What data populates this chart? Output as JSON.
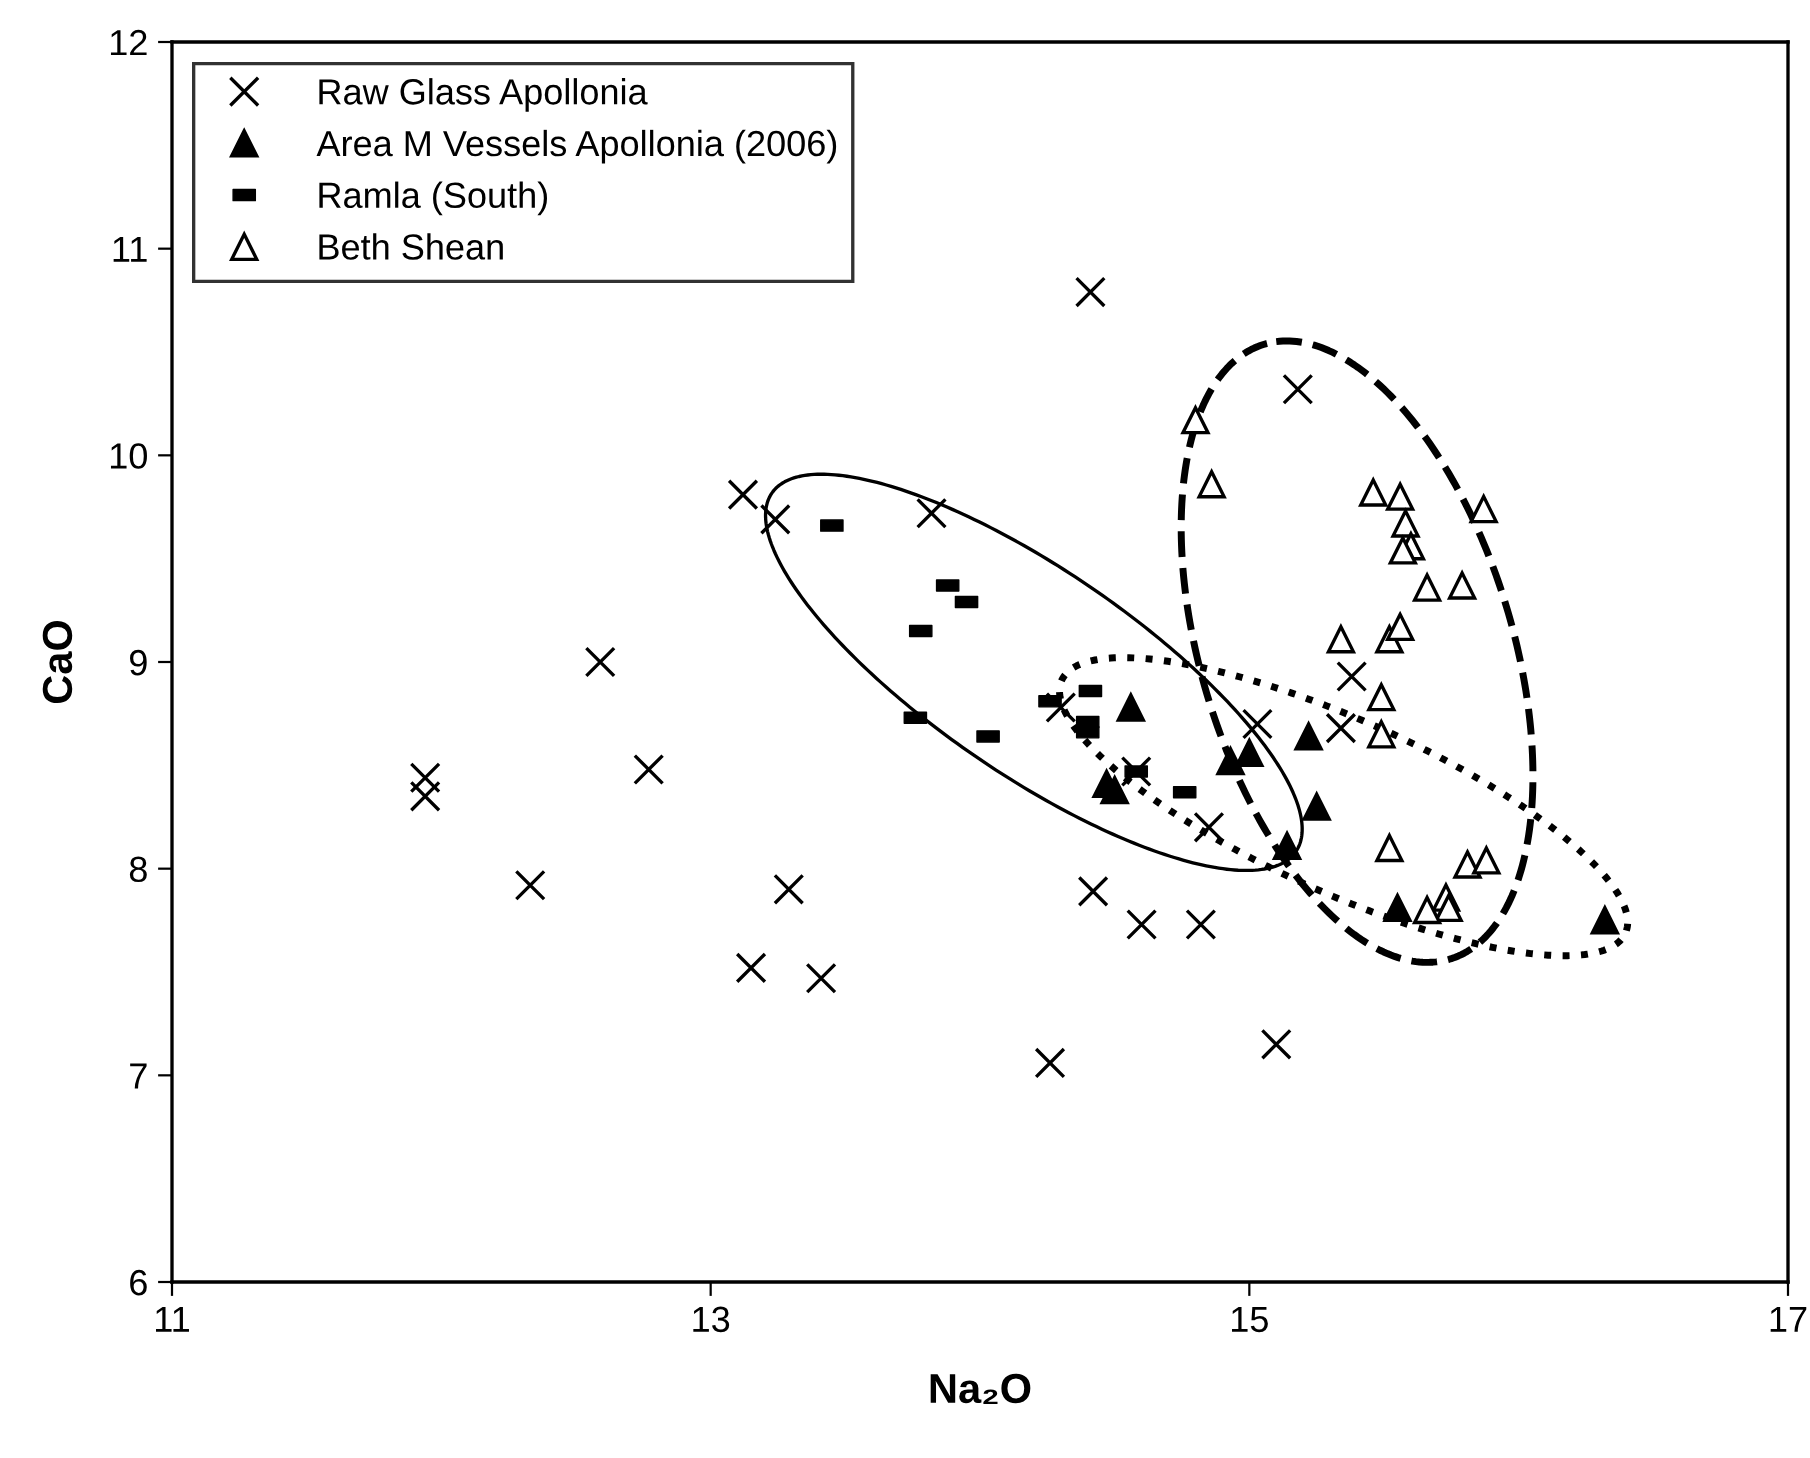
{
  "chart_data": {
    "type": "scatter",
    "xlabel": "Na₂O",
    "ylabel": "CaO",
    "xlim": [
      11,
      17
    ],
    "ylim": [
      6,
      12
    ],
    "xticks": [
      11,
      13,
      15,
      17
    ],
    "yticks": [
      6,
      7,
      8,
      9,
      10,
      11,
      12
    ],
    "legend": "top left",
    "grid": false,
    "series": [
      {
        "name": "Raw Glass Apollonia",
        "color": "#000000",
        "marker": "cross",
        "x": [
          11.94,
          11.94,
          12.59,
          12.77,
          12.33,
          13.29,
          13.15,
          13.41,
          13.12,
          13.24,
          13.82,
          14.41,
          14.3,
          14.58,
          14.85,
          14.42,
          14.6,
          14.82,
          14.26,
          15.18,
          15.38,
          15.03,
          15.34,
          15.1
        ],
        "values": [
          8.44,
          8.35,
          9.0,
          8.48,
          7.92,
          7.9,
          7.52,
          7.47,
          9.81,
          9.69,
          9.72,
          10.79,
          8.78,
          8.47,
          8.2,
          7.89,
          7.73,
          7.73,
          7.06,
          10.32,
          8.93,
          8.7,
          8.68,
          7.15
        ]
      },
      {
        "name": "Area M Vessels Apollonia (2006)",
        "color": "#000000",
        "marker": "triangle",
        "x": [
          14.56,
          14.47,
          14.5,
          14.93,
          15.0,
          15.22,
          15.25,
          15.14,
          15.55,
          16.32
        ],
        "values": [
          8.78,
          8.41,
          8.38,
          8.52,
          8.56,
          8.64,
          8.3,
          8.11,
          7.81,
          7.75
        ]
      },
      {
        "name": "Ramla (South)",
        "color": "#000000",
        "marker": "square",
        "x": [
          13.45,
          13.88,
          13.95,
          13.78,
          13.76,
          14.03,
          14.41,
          14.26,
          14.4,
          14.4,
          14.58,
          14.76
        ],
        "values": [
          9.66,
          9.37,
          9.29,
          9.15,
          8.73,
          8.64,
          8.86,
          8.81,
          8.71,
          8.66,
          8.47,
          8.37
        ]
      },
      {
        "name": "Beth Shean",
        "color": "#ffffff",
        "marker": "triangle",
        "x": [
          14.8,
          14.86,
          15.46,
          15.56,
          15.58,
          15.6,
          15.57,
          15.87,
          15.66,
          15.79,
          15.34,
          15.52,
          15.56,
          15.49,
          15.49,
          15.52,
          15.81,
          15.88,
          15.73,
          15.74,
          15.66
        ],
        "values": [
          10.17,
          9.86,
          9.82,
          9.8,
          9.67,
          9.56,
          9.54,
          9.74,
          9.36,
          9.37,
          9.11,
          9.11,
          9.17,
          8.83,
          8.65,
          8.1,
          8.02,
          8.04,
          7.86,
          7.81,
          7.8
        ]
      }
    ]
  }
}
